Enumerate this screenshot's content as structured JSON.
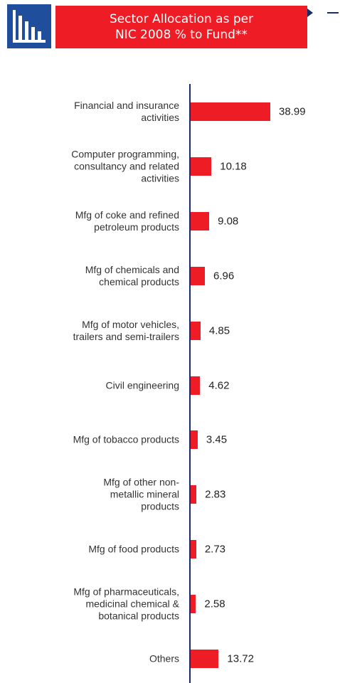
{
  "chart_data": {
    "type": "bar",
    "orientation": "horizontal",
    "title": "Sector Allocation as per\nNIC 2008 % to Fund**",
    "categories": [
      "Financial and insurance\nactivities",
      "Computer programming,\nconsultancy and related\nactivities",
      "Mfg of coke and refined\npetroleum products",
      "Mfg of chemicals and\nchemical products",
      "Mfg of motor vehicles,\ntrailers and semi-trailers",
      "Civil engineering",
      "Mfg of tobacco products",
      "Mfg of other non-\nmetallic mineral\nproducts",
      "Mfg of food products",
      "Mfg of pharmaceuticals,\nmedicinal chemical &\nbotanical products",
      "Others"
    ],
    "values": [
      38.99,
      10.18,
      9.08,
      6.96,
      4.85,
      4.62,
      3.45,
      2.83,
      2.73,
      2.58,
      13.72
    ],
    "color": "#ee1c25"
  }
}
